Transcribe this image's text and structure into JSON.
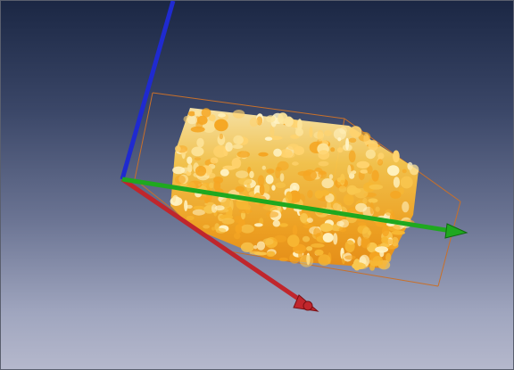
{
  "viewport": {
    "background_top": "#1b2744",
    "background_bottom": "#b5b8cc"
  },
  "volume": {
    "colors": [
      "#f7b733",
      "#f9c74f",
      "#fde49a",
      "#ffd36e",
      "#f5a623",
      "#fff3c4"
    ],
    "bounding_box_color": "#c8702a"
  },
  "axes": [
    {
      "name": "x-axis",
      "color": "#c0262c",
      "icon": "arrow"
    },
    {
      "name": "y-axis",
      "color": "#1fa81f",
      "icon": "arrow"
    },
    {
      "name": "z-axis",
      "color": "#1f2ad0",
      "icon": "arrow"
    }
  ]
}
